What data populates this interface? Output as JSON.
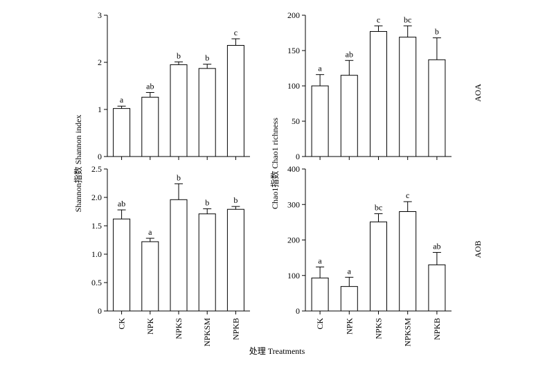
{
  "chart_data": [
    {
      "type": "bar",
      "panel": "Shannon AOA",
      "categories": [
        "CK",
        "NPK",
        "NPKS",
        "NPKSM",
        "NPKB"
      ],
      "values": [
        1.02,
        1.26,
        1.95,
        1.87,
        2.36
      ],
      "errors": [
        0.05,
        0.1,
        0.06,
        0.09,
        0.14
      ],
      "significance": [
        "a",
        "ab",
        "b",
        "b",
        "c"
      ],
      "ylim": [
        0,
        3
      ],
      "yticks": [
        "0",
        "1",
        "2",
        "3"
      ]
    },
    {
      "type": "bar",
      "panel": "Chao1 AOA",
      "categories": [
        "CK",
        "NPK",
        "NPKS",
        "NPKSM",
        "NPKB"
      ],
      "values": [
        100,
        115,
        177,
        169,
        137
      ],
      "errors": [
        16,
        21,
        8,
        16,
        31
      ],
      "significance": [
        "a",
        "ab",
        "c",
        "bc",
        "b"
      ],
      "ylim": [
        0,
        200
      ],
      "yticks": [
        "0",
        "50",
        "100",
        "150",
        "200"
      ]
    },
    {
      "type": "bar",
      "panel": "Shannon AOB",
      "categories": [
        "CK",
        "NPK",
        "NPKS",
        "NPKSM",
        "NPKB"
      ],
      "values": [
        1.62,
        1.22,
        1.96,
        1.71,
        1.79
      ],
      "errors": [
        0.16,
        0.06,
        0.28,
        0.09,
        0.05
      ],
      "significance": [
        "ab",
        "a",
        "b",
        "b",
        "b"
      ],
      "ylim": [
        0,
        2.5
      ],
      "yticks": [
        "0",
        "0.5",
        "1.0",
        "1.5",
        "2.0",
        "2.5"
      ]
    },
    {
      "type": "bar",
      "panel": "Chao1 AOB",
      "categories": [
        "CK",
        "NPK",
        "NPKS",
        "NPKSM",
        "NPKB"
      ],
      "values": [
        93,
        69,
        251,
        280,
        130
      ],
      "errors": [
        31,
        26,
        23,
        28,
        35
      ],
      "significance": [
        "a",
        "a",
        "bc",
        "c",
        "ab"
      ],
      "ylim": [
        0,
        400
      ],
      "yticks": [
        "0",
        "100",
        "200",
        "300",
        "400"
      ]
    }
  ],
  "labels": {
    "shannon_ylabel": "Shannon指数 Shannon index",
    "chao1_ylabel": "Chao1指数 Chao1 richness",
    "xlabel": "处理 Treatments",
    "row_top": "AOA",
    "row_bottom": "AOB"
  }
}
